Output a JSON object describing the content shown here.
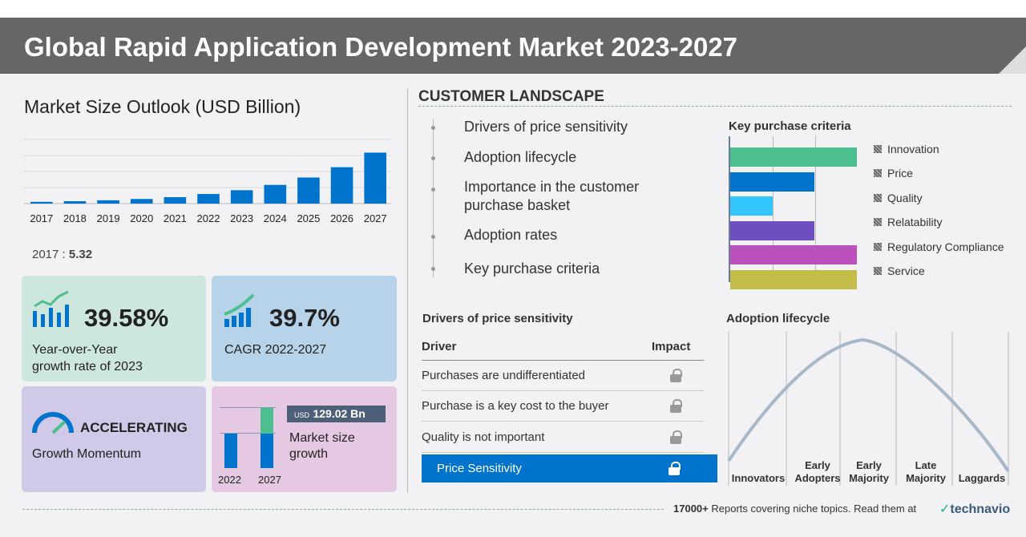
{
  "header": {
    "title": "Global Rapid Application Development Market 2023-2027"
  },
  "chart_data": {
    "type": "bar",
    "title": "Market Size Outlook (USD Billion)",
    "categories": [
      "2017",
      "2018",
      "2019",
      "2020",
      "2021",
      "2022",
      "2023",
      "2024",
      "2025",
      "2026",
      "2027"
    ],
    "values": [
      5.32,
      7.4,
      10.3,
      14.4,
      20.1,
      29.9,
      41.7,
      58.2,
      81.3,
      113.5,
      158.9
    ],
    "ylim": [
      0,
      200
    ],
    "grid": true,
    "color": "#0074cc",
    "highlight_label": "2017",
    "highlight_value": "5.32"
  },
  "kpis": {
    "yoy_value": "39.58%",
    "yoy_label1": "Year-over-Year",
    "yoy_label2": "growth rate of 2023",
    "cagr_value": "39.7%",
    "cagr_label": "CAGR 2022-2027",
    "momentum_value": "ACCELERATING",
    "momentum_label": "Growth Momentum",
    "growth_currency": "USD",
    "growth_value": "129.02 Bn",
    "growth_label1": "Market size",
    "growth_label2": "growth",
    "growth_year1": "2022",
    "growth_year2": "2027"
  },
  "customer": {
    "title": "CUSTOMER LANDSCAPE",
    "items": [
      "Drivers of price sensitivity",
      "Adoption lifecycle",
      "Importance in the customer",
      "purchase basket",
      "Adoption rates",
      "Key purchase criteria"
    ]
  },
  "kpc": {
    "title": "Key purchase criteria",
    "items": [
      {
        "label": "Innovation",
        "value": 3,
        "color": "#4dbf8e"
      },
      {
        "label": "Price",
        "value": 2,
        "color": "#0074cc"
      },
      {
        "label": "Quality",
        "value": 1,
        "color": "#33c6ff"
      },
      {
        "label": "Relatability",
        "value": 2,
        "color": "#6e4fc2"
      },
      {
        "label": "Regulatory Compliance",
        "value": 3,
        "color": "#bb4fbb"
      },
      {
        "label": "Service",
        "value": 3,
        "color": "#c4bd4a"
      }
    ]
  },
  "drivers": {
    "title": "Drivers of price sensitivity",
    "col_driver": "Driver",
    "col_impact": "Impact",
    "rows": [
      "Purchases are undifferentiated",
      "Purchase is a key cost to the buyer",
      "Quality is not important"
    ],
    "highlight": "Price Sensitivity"
  },
  "adoption": {
    "title": "Adoption lifecycle",
    "stages": [
      "Innovators",
      "Early Adopters",
      "Early Majority",
      "Late Majority",
      "Laggards"
    ]
  },
  "footer": {
    "count": "17000+",
    "text": "Reports covering niche topics. Read them at",
    "brand": "technavio"
  }
}
